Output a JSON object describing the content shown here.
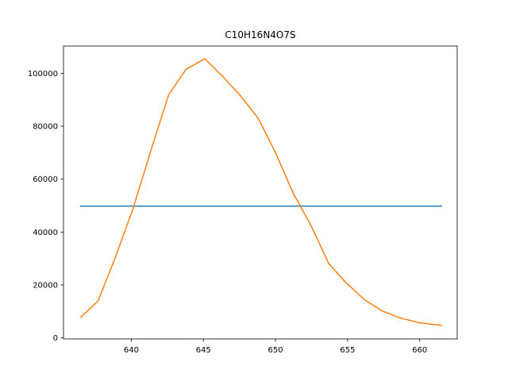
{
  "chart_data": {
    "type": "line",
    "title": "C10H16N4O7S",
    "xlabel": "",
    "ylabel": "",
    "xlim": [
      635.3,
      662.6
    ],
    "ylim": [
      -400,
      110300
    ],
    "xticks": [
      640,
      645,
      650,
      655,
      660
    ],
    "yticks": [
      0,
      20000,
      40000,
      60000,
      80000,
      100000
    ],
    "grid": false,
    "series": [
      {
        "color": "#1f77b4",
        "x": [
          636.5,
          661.5
        ],
        "y": [
          49800,
          49800
        ]
      },
      {
        "color": "#ff7f0e",
        "x": [
          636.5,
          637.7,
          638.9,
          640.1,
          641.4,
          642.6,
          643.8,
          645.1,
          646.3,
          647.5,
          648.8,
          650.0,
          651.2,
          652.5,
          653.7,
          654.9,
          656.2,
          657.4,
          658.6,
          659.9,
          661.5
        ],
        "y": [
          7800,
          14000,
          30500,
          48500,
          71500,
          92000,
          101500,
          105500,
          99000,
          92000,
          83000,
          70000,
          55000,
          42000,
          28000,
          20800,
          14300,
          10200,
          7600,
          5800,
          4700
        ]
      }
    ]
  }
}
